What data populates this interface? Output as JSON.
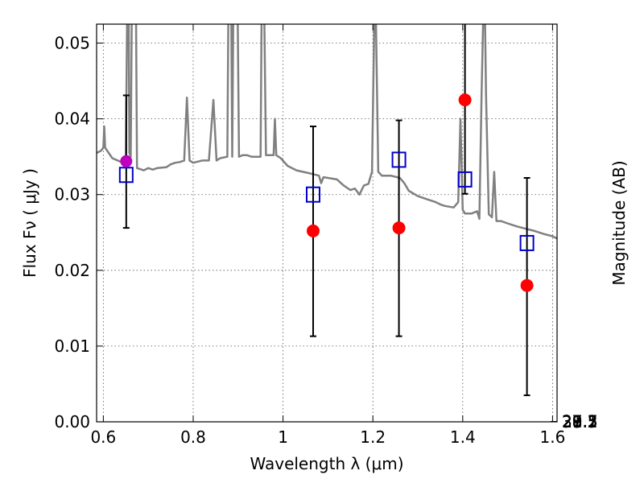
{
  "chart_data": {
    "type": "scatter",
    "xlabel": "Wavelength  λ (μm)",
    "ylabel": "Flux  Fν  ( μJy )",
    "y2label": "Magnitude (AB)",
    "xlim": [
      0.585,
      1.61
    ],
    "ylim": [
      0.0,
      0.0525
    ],
    "grid": true,
    "x_ticks": [
      {
        "value": 0.6,
        "label": "0.6"
      },
      {
        "value": 0.8,
        "label": "0.8"
      },
      {
        "value": 1.0,
        "label": "1"
      },
      {
        "value": 1.2,
        "label": "1.2"
      },
      {
        "value": 1.4,
        "label": "1.4"
      },
      {
        "value": 1.6,
        "label": "1.6"
      }
    ],
    "y_ticks": [
      {
        "value": 0.0,
        "label": "0.00"
      },
      {
        "value": 0.01,
        "label": "0.01"
      },
      {
        "value": 0.02,
        "label": "0.02"
      },
      {
        "value": 0.03,
        "label": "0.03"
      },
      {
        "value": 0.04,
        "label": "0.04"
      },
      {
        "value": 0.05,
        "label": "0.05"
      }
    ],
    "y2_ticks": [
      {
        "mag": 27.1,
        "label": "27.1"
      },
      {
        "mag": 27.3,
        "label": "27.3"
      },
      {
        "mag": 27.5,
        "label": "27.5"
      },
      {
        "mag": 27.7,
        "label": "27.7"
      },
      {
        "mag": 28.0,
        "label": "28"
      },
      {
        "mag": 28.2,
        "label": "28.2"
      },
      {
        "mag": 28.5,
        "label": "28.5"
      },
      {
        "mag": 29.0,
        "label": "29"
      },
      {
        "mag": 29.5,
        "label": "29.5"
      },
      {
        "mag": 30.0,
        "label": "30"
      },
      {
        "mag": 31.0,
        "label": "31"
      }
    ],
    "observed": [
      {
        "x": 1.067,
        "y": 0.0252,
        "yerr_low": 0.0113,
        "yerr_high": 0.039
      },
      {
        "x": 1.258,
        "y": 0.0256,
        "yerr_low": 0.0113,
        "yerr_high": 0.0398
      },
      {
        "x": 1.405,
        "y": 0.0425,
        "yerr_low": 0.0301,
        "yerr_high": 0.053
      },
      {
        "x": 1.543,
        "y": 0.018,
        "yerr_low": 0.0035,
        "yerr_high": 0.0322
      }
    ],
    "observed_optical": [
      {
        "x": 0.651,
        "y": 0.0344,
        "yerr_low": 0.0256,
        "yerr_high": 0.0431
      }
    ],
    "model_photometry": [
      {
        "x": 0.651,
        "y": 0.0326
      },
      {
        "x": 1.067,
        "y": 0.03
      },
      {
        "x": 1.258,
        "y": 0.0346
      },
      {
        "x": 1.405,
        "y": 0.032
      },
      {
        "x": 1.543,
        "y": 0.0236
      }
    ],
    "model_spectrum": [
      [
        0.585,
        0.0355
      ],
      [
        0.595,
        0.0358
      ],
      [
        0.6,
        0.0362
      ],
      [
        0.602,
        0.039
      ],
      [
        0.604,
        0.0362
      ],
      [
        0.62,
        0.0348
      ],
      [
        0.64,
        0.0343
      ],
      [
        0.645,
        0.0348
      ],
      [
        0.65,
        0.035
      ],
      [
        0.654,
        0.06
      ],
      [
        0.656,
        0.06
      ],
      [
        0.658,
        0.0355
      ],
      [
        0.661,
        0.035
      ],
      [
        0.664,
        0.06
      ],
      [
        0.672,
        0.06
      ],
      [
        0.675,
        0.0335
      ],
      [
        0.69,
        0.0332
      ],
      [
        0.7,
        0.0335
      ],
      [
        0.71,
        0.0333
      ],
      [
        0.72,
        0.0335
      ],
      [
        0.74,
        0.0336
      ],
      [
        0.75,
        0.034
      ],
      [
        0.76,
        0.0342
      ],
      [
        0.77,
        0.0343
      ],
      [
        0.78,
        0.0345
      ],
      [
        0.786,
        0.0428
      ],
      [
        0.792,
        0.0345
      ],
      [
        0.8,
        0.0342
      ],
      [
        0.82,
        0.0345
      ],
      [
        0.835,
        0.0345
      ],
      [
        0.845,
        0.0425
      ],
      [
        0.852,
        0.0345
      ],
      [
        0.86,
        0.0348
      ],
      [
        0.876,
        0.035
      ],
      [
        0.879,
        0.06
      ],
      [
        0.884,
        0.06
      ],
      [
        0.887,
        0.035
      ],
      [
        0.89,
        0.06
      ],
      [
        0.898,
        0.06
      ],
      [
        0.902,
        0.035
      ],
      [
        0.91,
        0.0352
      ],
      [
        0.92,
        0.0352
      ],
      [
        0.93,
        0.035
      ],
      [
        0.94,
        0.035
      ],
      [
        0.95,
        0.035
      ],
      [
        0.953,
        0.06
      ],
      [
        0.957,
        0.06
      ],
      [
        0.962,
        0.0352
      ],
      [
        0.97,
        0.0352
      ],
      [
        0.979,
        0.0352
      ],
      [
        0.982,
        0.04
      ],
      [
        0.985,
        0.0352
      ],
      [
        0.995,
        0.0348
      ],
      [
        1.01,
        0.0338
      ],
      [
        1.03,
        0.0332
      ],
      [
        1.06,
        0.0328
      ],
      [
        1.08,
        0.0325
      ],
      [
        1.085,
        0.0315
      ],
      [
        1.09,
        0.0323
      ],
      [
        1.1,
        0.0322
      ],
      [
        1.12,
        0.032
      ],
      [
        1.135,
        0.0312
      ],
      [
        1.15,
        0.0306
      ],
      [
        1.16,
        0.0308
      ],
      [
        1.17,
        0.03
      ],
      [
        1.18,
        0.0312
      ],
      [
        1.19,
        0.0314
      ],
      [
        1.198,
        0.033
      ],
      [
        1.205,
        0.06
      ],
      [
        1.212,
        0.033
      ],
      [
        1.22,
        0.0325
      ],
      [
        1.24,
        0.0325
      ],
      [
        1.26,
        0.0322
      ],
      [
        1.27,
        0.0315
      ],
      [
        1.28,
        0.0305
      ],
      [
        1.3,
        0.0298
      ],
      [
        1.32,
        0.0294
      ],
      [
        1.34,
        0.029
      ],
      [
        1.35,
        0.0287
      ],
      [
        1.36,
        0.0285
      ],
      [
        1.38,
        0.0283
      ],
      [
        1.39,
        0.029
      ],
      [
        1.395,
        0.04
      ],
      [
        1.4,
        0.028
      ],
      [
        1.405,
        0.0275
      ],
      [
        1.41,
        0.0275
      ],
      [
        1.42,
        0.0275
      ],
      [
        1.432,
        0.0278
      ],
      [
        1.437,
        0.0268
      ],
      [
        1.442,
        0.043
      ],
      [
        1.448,
        0.06
      ],
      [
        1.452,
        0.043
      ],
      [
        1.458,
        0.0274
      ],
      [
        1.465,
        0.027
      ],
      [
        1.47,
        0.033
      ],
      [
        1.475,
        0.0265
      ],
      [
        1.485,
        0.0265
      ],
      [
        1.5,
        0.0262
      ],
      [
        1.52,
        0.0258
      ],
      [
        1.54,
        0.0255
      ],
      [
        1.56,
        0.0252
      ],
      [
        1.58,
        0.0248
      ],
      [
        1.6,
        0.0245
      ],
      [
        1.61,
        0.0242
      ]
    ],
    "colors": {
      "observed": "#ff0000",
      "observed_optical": "#bf00bf",
      "model_photometry": "#0000cc",
      "model_spectrum": "#808080",
      "errorbar": "#000000",
      "grid": "#555555"
    }
  }
}
